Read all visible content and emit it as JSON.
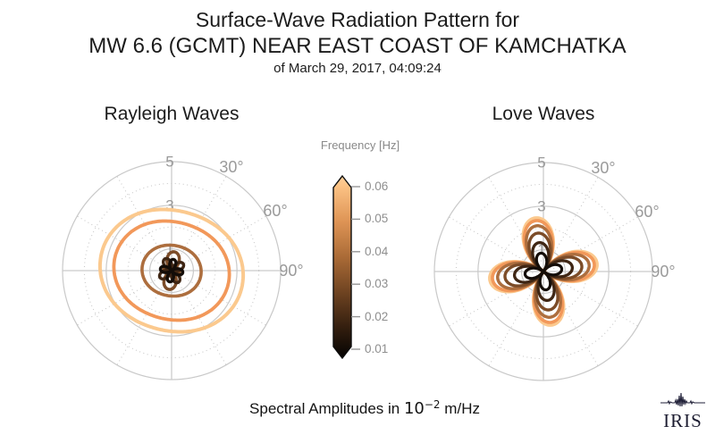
{
  "header": {
    "title_line1": "Surface-Wave Radiation Pattern for",
    "title_line2": "MW 6.6 (GCMT) NEAR EAST COAST OF KAMCHATKA",
    "title_line3": "of March 29, 2017, 04:09:24"
  },
  "caption": {
    "prefix": "Spectral Amplitudes in",
    "base": "10",
    "exponent": "−2",
    "suffix": "m/Hz"
  },
  "logo": {
    "text": "IRIS"
  },
  "colorbar": {
    "title": "Frequency [Hz]",
    "tick_labels": [
      "0.06",
      "0.05",
      "0.04",
      "0.03",
      "0.02",
      "0.01"
    ],
    "tick_values": [
      0.06,
      0.05,
      0.04,
      0.03,
      0.02,
      0.01
    ],
    "gradient_stops_top_to_bottom": [
      "#FFD09A",
      "#FBC183",
      "#DE9455",
      "#A96A36",
      "#6B4120",
      "#2E1B0D",
      "#040302"
    ],
    "gradient_offsets_pct": [
      0,
      6,
      25,
      45,
      65,
      85,
      100
    ],
    "outline_color": "#0d0d0d",
    "tick_color": "#969696"
  },
  "grid": {
    "solid_circle_radii": [
      1,
      3,
      5
    ],
    "dotted_circle_radii": [
      0.5,
      2,
      4
    ],
    "radial_max": 5,
    "dotted_spoke_angles_deg": [
      30,
      60,
      120,
      150,
      210,
      240,
      300,
      330
    ],
    "solid_spoke_angles_deg": [
      0,
      90,
      180,
      270
    ],
    "grid_color": "#c9c9c9",
    "label_color": "#9a9a9a"
  },
  "chart_data": [
    {
      "type": "polar_radiation_pattern",
      "title": "Rayleigh Waves",
      "angular_convention": "azimuth degrees, 0 at north, clockwise",
      "radial_ticks": [
        1,
        3,
        5
      ],
      "radial_range": [
        0,
        5
      ],
      "angle_tick_labels": [
        {
          "angle_deg": 30,
          "label": "30°"
        },
        {
          "angle_deg": 60,
          "label": "60°"
        },
        {
          "angle_deg": 90,
          "label": "90°"
        }
      ],
      "amplitude_units": "10^-2 m/Hz",
      "series": [
        {
          "frequency_hz": 0.06,
          "color": "#FBC98E",
          "model": "offset_cos2",
          "offset": 3.03,
          "amplitude": 0.28,
          "phase_deg": 105,
          "stroke_width": 4.0
        },
        {
          "frequency_hz": 0.05,
          "color": "#F2985A",
          "model": "offset_cos2",
          "offset": 2.45,
          "amplitude": 0.22,
          "phase_deg": 105,
          "stroke_width": 3.8
        },
        {
          "frequency_hz": 0.04,
          "color": "#AD6E3E",
          "model": "offset_cos2",
          "offset": 1.26,
          "amplitude": 0.1,
          "phase_deg": 100,
          "stroke_width": 3.6
        },
        {
          "frequency_hz": 0.03,
          "color": "#7C4C28",
          "model": "offset_cos2",
          "offset": 0.25,
          "amplitude": 0.62,
          "phase_deg": 8,
          "stroke_width": 3.5
        },
        {
          "frequency_hz": 0.02,
          "color": "#3F2614",
          "model": "cos2_rose",
          "amplitude": 0.62,
          "phase_deg": 60,
          "stroke_width": 3.4
        },
        {
          "frequency_hz": 0.01,
          "color": "#140D08",
          "model": "cos2_rose",
          "amplitude": 0.52,
          "phase_deg": 100,
          "stroke_width": 3.4
        }
      ]
    },
    {
      "type": "polar_radiation_pattern",
      "title": "Love Waves",
      "angular_convention": "azimuth degrees, 0 at north, clockwise",
      "radial_ticks": [
        1,
        3,
        5
      ],
      "radial_range": [
        0,
        5
      ],
      "angle_tick_labels": [
        {
          "angle_deg": 30,
          "label": "30°"
        },
        {
          "angle_deg": 60,
          "label": "60°"
        },
        {
          "angle_deg": 90,
          "label": "90°"
        }
      ],
      "amplitude_units": "10^-2 m/Hz",
      "series": [
        {
          "frequency_hz": 0.06,
          "color": "#FBC98E",
          "model": "cos2_rose",
          "amplitude": 2.48,
          "phase_deg": 81,
          "stroke_width": 4.0
        },
        {
          "frequency_hz": 0.05,
          "color": "#F2985A",
          "model": "cos2_rose",
          "amplitude": 2.36,
          "phase_deg": 81,
          "stroke_width": 3.6
        },
        {
          "frequency_hz": 0.04,
          "color": "#AD6E3E",
          "model": "cos2_rose",
          "amplitude": 2.12,
          "phase_deg": 81,
          "stroke_width": 3.5
        },
        {
          "frequency_hz": 0.03,
          "color": "#7C4C28",
          "model": "cos2_rose",
          "amplitude": 1.78,
          "phase_deg": 81,
          "stroke_width": 3.4
        },
        {
          "frequency_hz": 0.02,
          "color": "#3F2614",
          "model": "cos2_rose",
          "amplitude": 1.34,
          "phase_deg": 81,
          "stroke_width": 3.3
        },
        {
          "frequency_hz": 0.01,
          "color": "#140D08",
          "model": "cos2_rose",
          "amplitude": 0.85,
          "phase_deg": 81,
          "stroke_width": 3.2
        }
      ]
    }
  ]
}
